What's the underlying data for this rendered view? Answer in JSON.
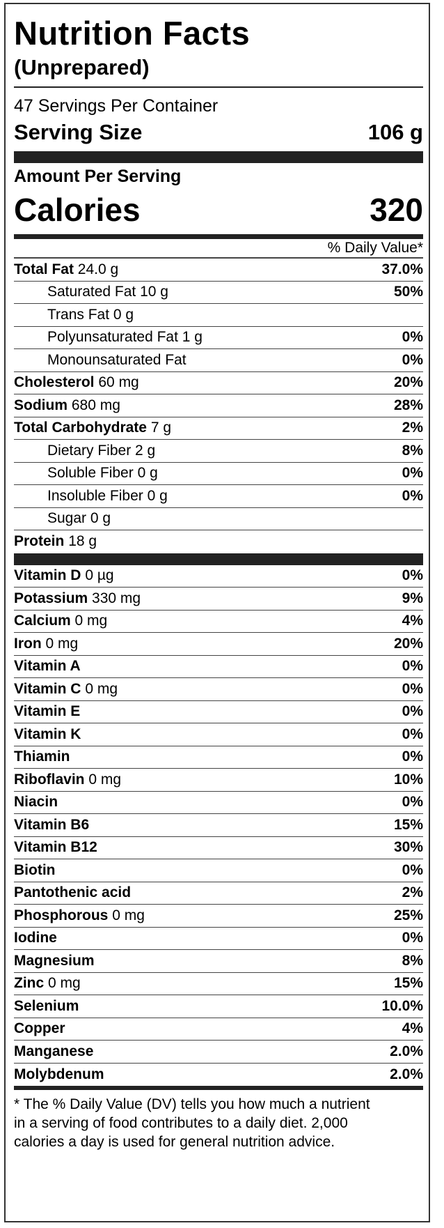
{
  "header": {
    "title": "Nutrition Facts",
    "subtitle": "(Unprepared)",
    "servings_per_container": "47 Servings Per Container",
    "serving_size_label": "Serving Size",
    "serving_size_value": "106 g",
    "amount_per_serving": "Amount Per Serving",
    "calories_label": "Calories",
    "calories_value": "320",
    "daily_value_header": "% Daily Value*"
  },
  "macros": [
    {
      "name": "Total Fat",
      "amount": "24.0 g",
      "dv": "37.0%",
      "indent": false
    },
    {
      "name": "Saturated Fat",
      "amount": "10 g",
      "dv": "50%",
      "indent": true
    },
    {
      "name": "Trans Fat",
      "amount": "0 g",
      "dv": "",
      "indent": true
    },
    {
      "name": "Polyunsaturated Fat",
      "amount": "1 g",
      "dv": "0%",
      "indent": true
    },
    {
      "name": "Monounsaturated Fat",
      "amount": "",
      "dv": "0%",
      "indent": true
    },
    {
      "name": "Cholesterol",
      "amount": "60 mg",
      "dv": "20%",
      "indent": false
    },
    {
      "name": "Sodium",
      "amount": "680 mg",
      "dv": "28%",
      "indent": false
    },
    {
      "name": "Total Carbohydrate",
      "amount": "7 g",
      "dv": "2%",
      "indent": false
    },
    {
      "name": "Dietary Fiber",
      "amount": "2 g",
      "dv": "8%",
      "indent": true
    },
    {
      "name": "Soluble Fiber",
      "amount": "0 g",
      "dv": "0%",
      "indent": true
    },
    {
      "name": "Insoluble Fiber",
      "amount": "0 g",
      "dv": "0%",
      "indent": true
    },
    {
      "name": "Sugar",
      "amount": "0 g",
      "dv": "",
      "indent": true
    },
    {
      "name": "Protein",
      "amount": "18 g",
      "dv": "",
      "indent": false
    }
  ],
  "micros": [
    {
      "name": "Vitamin D",
      "amount": "0 µg",
      "dv": "0%"
    },
    {
      "name": "Potassium",
      "amount": "330 mg",
      "dv": "9%"
    },
    {
      "name": "Calcium",
      "amount": "0 mg",
      "dv": "4%"
    },
    {
      "name": "Iron",
      "amount": "0 mg",
      "dv": "20%"
    },
    {
      "name": "Vitamin A",
      "amount": "",
      "dv": "0%"
    },
    {
      "name": "Vitamin C",
      "amount": "0 mg",
      "dv": "0%"
    },
    {
      "name": "Vitamin E",
      "amount": "",
      "dv": "0%"
    },
    {
      "name": "Vitamin K",
      "amount": "",
      "dv": "0%"
    },
    {
      "name": "Thiamin",
      "amount": "",
      "dv": "0%"
    },
    {
      "name": "Riboflavin",
      "amount": "0 mg",
      "dv": "10%"
    },
    {
      "name": "Niacin",
      "amount": "",
      "dv": "0%"
    },
    {
      "name": "Vitamin B6",
      "amount": "",
      "dv": "15%"
    },
    {
      "name": "Vitamin B12",
      "amount": "",
      "dv": "30%"
    },
    {
      "name": "Biotin",
      "amount": "",
      "dv": "0%"
    },
    {
      "name": "Pantothenic acid",
      "amount": "",
      "dv": "2%"
    },
    {
      "name": "Phosphorous",
      "amount": "0 mg",
      "dv": "25%"
    },
    {
      "name": "Iodine",
      "amount": "",
      "dv": "0%"
    },
    {
      "name": "Magnesium",
      "amount": "",
      "dv": "8%"
    },
    {
      "name": "Zinc",
      "amount": "0 mg",
      "dv": "15%"
    },
    {
      "name": "Selenium",
      "amount": "",
      "dv": "10.0%"
    },
    {
      "name": "Copper",
      "amount": "",
      "dv": "4%"
    },
    {
      "name": "Manganese",
      "amount": "",
      "dv": "2.0%"
    },
    {
      "name": "Molybdenum",
      "amount": "",
      "dv": "2.0%"
    }
  ],
  "footnote": {
    "line1": "* The % Daily Value (DV) tells you how much a nutrient",
    "line2": "in a serving of food contributes to a daily diet. 2,000",
    "line3": "calories a day is used for general nutrition advice."
  }
}
